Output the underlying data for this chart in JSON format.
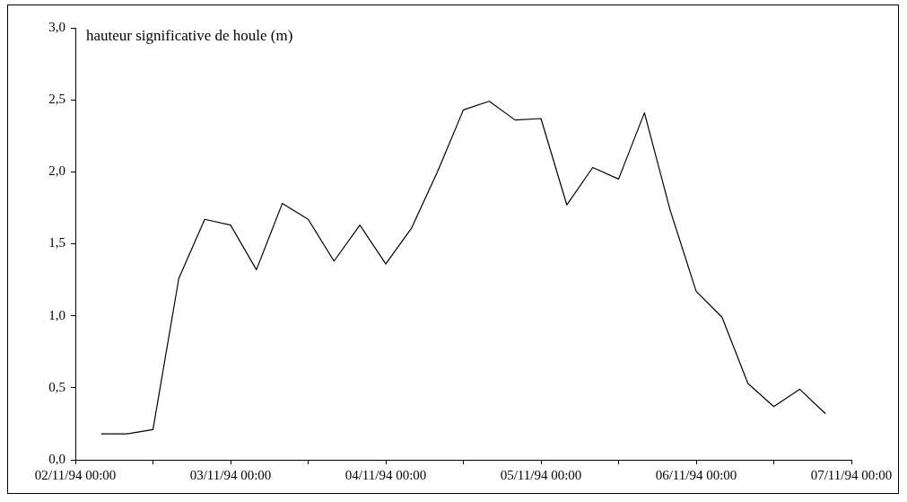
{
  "chart_data": {
    "type": "line",
    "ylabel": "hauteur significative de houle (m)",
    "x": [
      "1994-11-02T04:00",
      "1994-11-02T08:00",
      "1994-11-02T12:00",
      "1994-11-02T16:00",
      "1994-11-02T20:00",
      "1994-11-03T00:00",
      "1994-11-03T04:00",
      "1994-11-03T08:00",
      "1994-11-03T12:00",
      "1994-11-03T16:00",
      "1994-11-03T20:00",
      "1994-11-04T00:00",
      "1994-11-04T04:00",
      "1994-11-04T08:00",
      "1994-11-04T12:00",
      "1994-11-04T16:00",
      "1994-11-04T20:00",
      "1994-11-05T00:00",
      "1994-11-05T04:00",
      "1994-11-05T08:00",
      "1994-11-05T12:00",
      "1994-11-05T16:00",
      "1994-11-05T20:00",
      "1994-11-06T00:00",
      "1994-11-06T04:00",
      "1994-11-06T08:00",
      "1994-11-06T12:00",
      "1994-11-06T16:00",
      "1994-11-06T20:00"
    ],
    "series": [
      {
        "color": "#000000",
        "values": [
          0.18,
          0.18,
          0.21,
          1.26,
          1.67,
          1.63,
          1.32,
          1.78,
          1.67,
          1.38,
          1.63,
          1.36,
          1.61,
          2.0,
          2.43,
          2.49,
          2.36,
          2.37,
          1.77,
          2.03,
          1.95,
          2.41,
          1.73,
          1.17,
          0.99,
          0.53,
          0.37,
          0.49,
          0.32
        ]
      }
    ],
    "xlim": [
      "1994-11-02T00:00",
      "1994-11-07T00:00"
    ],
    "xticks": [
      {
        "value": "1994-11-02T00:00",
        "label": "02/11/94 00:00"
      },
      {
        "value": "1994-11-02T12:00",
        "label": null
      },
      {
        "value": "1994-11-03T00:00",
        "label": "03/11/94 00:00"
      },
      {
        "value": "1994-11-03T12:00",
        "label": null
      },
      {
        "value": "1994-11-04T00:00",
        "label": "04/11/94 00:00"
      },
      {
        "value": "1994-11-04T12:00",
        "label": null
      },
      {
        "value": "1994-11-05T00:00",
        "label": "05/11/94 00:00"
      },
      {
        "value": "1994-11-05T12:00",
        "label": null
      },
      {
        "value": "1994-11-06T00:00",
        "label": "06/11/94 00:00"
      },
      {
        "value": "1994-11-06T12:00",
        "label": null
      },
      {
        "value": "1994-11-07T00:00",
        "label": "07/11/94 00:00"
      }
    ],
    "ylim": [
      0,
      3
    ],
    "yticks": [
      {
        "value": 0,
        "label": "0,0"
      },
      {
        "value": 0.5,
        "label": "0,5"
      },
      {
        "value": 1,
        "label": "1,0"
      },
      {
        "value": 1.5,
        "label": "1,5"
      },
      {
        "value": 2,
        "label": "2,0"
      },
      {
        "value": 2.5,
        "label": "2,5"
      },
      {
        "value": 3,
        "label": "3,0"
      }
    ],
    "grid": false,
    "legend": false,
    "marker": "none",
    "line_style": "solid"
  }
}
